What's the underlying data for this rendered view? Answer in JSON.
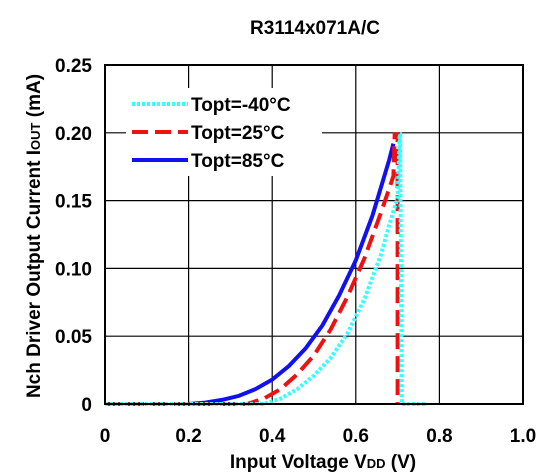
{
  "chart_data": {
    "type": "line",
    "title": "R3114x071A/C",
    "xlabel": {
      "main": "Input Voltage V",
      "sub": "DD",
      "unit": " (V)"
    },
    "ylabel": {
      "main": "Nch Driver Output Current I",
      "sub": "OUT",
      "unit": " (mA)"
    },
    "xlim": [
      0,
      1.0
    ],
    "ylim": [
      0,
      0.25
    ],
    "x_ticks": [
      0,
      0.2,
      0.4,
      0.6,
      0.8,
      1.0
    ],
    "x_tick_labels": [
      "0",
      "0.2",
      "0.4",
      "0.6",
      "0.8",
      "1.0"
    ],
    "y_ticks": [
      0,
      0.05,
      0.1,
      0.15,
      0.2,
      0.25
    ],
    "y_tick_labels": [
      "0",
      "0.05",
      "0.10",
      "0.15",
      "0.20",
      "0.25"
    ],
    "grid": true,
    "legend_position": "top-left",
    "series": [
      {
        "name": "Topt=-40°C",
        "color": "#33ffff",
        "dash": "dotted",
        "x": [
          0,
          0.38,
          0.42,
          0.46,
          0.5,
          0.54,
          0.58,
          0.62,
          0.66,
          0.68,
          0.7,
          0.705,
          0.706,
          0.71,
          0.77
        ],
        "y": [
          0,
          0,
          0.004,
          0.011,
          0.021,
          0.034,
          0.052,
          0.077,
          0.11,
          0.132,
          0.152,
          0.199,
          0.199,
          0,
          0
        ]
      },
      {
        "name": "Topt=25°C",
        "color": "#ee1111",
        "dash": "dashed",
        "x": [
          0,
          0.34,
          0.38,
          0.42,
          0.46,
          0.5,
          0.54,
          0.58,
          0.62,
          0.66,
          0.69,
          0.693,
          0.7,
          0.7
        ],
        "y": [
          0,
          0,
          0.004,
          0.011,
          0.022,
          0.036,
          0.055,
          0.079,
          0.107,
          0.141,
          0.168,
          0.199,
          0.199,
          0
        ]
      },
      {
        "name": "Topt=85°C",
        "color": "#1111ee",
        "dash": "solid",
        "x": [
          0.2,
          0.24,
          0.28,
          0.32,
          0.36,
          0.4,
          0.44,
          0.48,
          0.52,
          0.56,
          0.6,
          0.64,
          0.68,
          0.69
        ],
        "y": [
          0,
          0.001,
          0.003,
          0.006,
          0.011,
          0.018,
          0.028,
          0.041,
          0.058,
          0.08,
          0.106,
          0.139,
          0.18,
          0.192
        ]
      }
    ]
  }
}
